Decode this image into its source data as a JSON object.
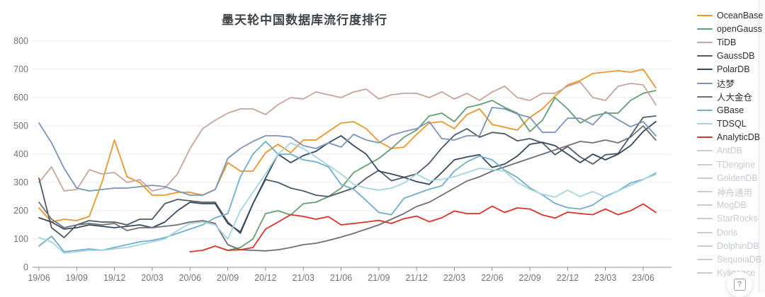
{
  "header": {
    "title": "墨天轮中国数据库流行度排行"
  },
  "help_button": {
    "glyph": "?"
  },
  "colors": {
    "grid": "#e4ecf4",
    "axis_line": "#8d9197",
    "tick_text": "#6f7378",
    "disabled_legend": "#c9cdd2"
  },
  "legend": {
    "position": "right",
    "items": [
      {
        "label": "OceanBase",
        "color": "#e8982c",
        "enabled": true
      },
      {
        "label": "openGauss",
        "color": "#659d72",
        "enabled": true
      },
      {
        "label": "TiDB",
        "color": "#c7a59c",
        "enabled": true
      },
      {
        "label": "GaussDB",
        "color": "#515a64",
        "enabled": true
      },
      {
        "label": "PolarDB",
        "color": "#37485c",
        "enabled": true
      },
      {
        "label": "达梦",
        "color": "#7a95b8",
        "enabled": true
      },
      {
        "label": "人大金仓",
        "color": "#6d6f74",
        "enabled": true
      },
      {
        "label": "GBase",
        "color": "#72aecb",
        "enabled": true
      },
      {
        "label": "TDSQL",
        "color": "#a6d4dd",
        "enabled": true
      },
      {
        "label": "AnalyticDB",
        "color": "#d6332a",
        "enabled": true
      },
      {
        "label": "AntDB",
        "color": "#c9cdd2",
        "enabled": false
      },
      {
        "label": "TDengine",
        "color": "#c9cdd2",
        "enabled": false
      },
      {
        "label": "GoldenDB",
        "color": "#c9cdd2",
        "enabled": false
      },
      {
        "label": "神舟通用",
        "color": "#c9cdd2",
        "enabled": false
      },
      {
        "label": "MogDB",
        "color": "#c9cdd2",
        "enabled": false
      },
      {
        "label": "StarRocks",
        "color": "#c9cdd2",
        "enabled": false
      },
      {
        "label": "Doris",
        "color": "#c9cdd2",
        "enabled": false
      },
      {
        "label": "DolphinDB",
        "color": "#c9cdd2",
        "enabled": false
      },
      {
        "label": "SequoiaDB",
        "color": "#c9cdd2",
        "enabled": false
      },
      {
        "label": "Kyligence",
        "color": "#c9cdd2",
        "enabled": false
      }
    ]
  },
  "chart_data": {
    "type": "line",
    "title": "墨天轮中国数据库流行度排行",
    "xlabel": "",
    "ylabel": "",
    "ylim": [
      0,
      800
    ],
    "ytick_step": 100,
    "grid": true,
    "legend_position": "right",
    "x": [
      "19/06",
      "19/07",
      "19/08",
      "19/09",
      "19/10",
      "19/11",
      "19/12",
      "20/01",
      "20/02",
      "20/03",
      "20/04",
      "20/05",
      "20/06",
      "20/07",
      "20/08",
      "20/09",
      "20/10",
      "20/11",
      "20/12",
      "21/01",
      "21/02",
      "21/03",
      "21/04",
      "21/05",
      "21/06",
      "21/07",
      "21/08",
      "21/09",
      "21/10",
      "21/11",
      "21/12",
      "22/01",
      "22/02",
      "22/03",
      "22/04",
      "22/05",
      "22/06",
      "22/07",
      "22/08",
      "22/09",
      "22/10",
      "22/11",
      "22/12",
      "23/01",
      "23/02",
      "23/03",
      "23/04",
      "23/05",
      "23/06",
      "23/07"
    ],
    "xtick_every": 3,
    "series": [
      {
        "name": "OceanBase",
        "color": "#e8982c",
        "enabled": true,
        "values": [
          210,
          160,
          170,
          165,
          180,
          300,
          450,
          320,
          300,
          255,
          255,
          265,
          265,
          255,
          275,
          370,
          340,
          340,
          405,
          435,
          405,
          450,
          450,
          480,
          510,
          515,
          490,
          445,
          420,
          425,
          470,
          510,
          515,
          490,
          540,
          560,
          505,
          495,
          485,
          530,
          560,
          605,
          645,
          660,
          685,
          690,
          695,
          690,
          700,
          635
        ]
      },
      {
        "name": "openGauss",
        "color": "#659d72",
        "enabled": true,
        "values": [
          null,
          null,
          null,
          null,
          null,
          null,
          null,
          null,
          null,
          null,
          null,
          null,
          null,
          null,
          null,
          60,
          70,
          100,
          190,
          200,
          185,
          225,
          230,
          250,
          280,
          335,
          360,
          385,
          420,
          460,
          485,
          535,
          545,
          515,
          565,
          575,
          590,
          565,
          545,
          480,
          520,
          600,
          560,
          510,
          535,
          545,
          545,
          590,
          615,
          625
        ]
      },
      {
        "name": "TiDB",
        "color": "#c7a59c",
        "enabled": true,
        "values": [
          300,
          355,
          270,
          275,
          345,
          330,
          335,
          300,
          310,
          270,
          280,
          330,
          420,
          490,
          520,
          545,
          560,
          560,
          540,
          575,
          600,
          595,
          620,
          610,
          600,
          620,
          630,
          595,
          610,
          615,
          615,
          600,
          620,
          595,
          615,
          590,
          620,
          640,
          600,
          590,
          615,
          615,
          640,
          655,
          600,
          590,
          640,
          650,
          645,
          575
        ]
      },
      {
        "name": "GaussDB",
        "color": "#515a64",
        "enabled": true,
        "values": [
          315,
          140,
          105,
          150,
          165,
          160,
          160,
          150,
          170,
          170,
          225,
          240,
          235,
          230,
          230,
          160,
          120,
          225,
          310,
          300,
          280,
          270,
          255,
          250,
          265,
          280,
          315,
          343,
          306,
          318,
          330,
          368,
          422,
          467,
          490,
          460,
          477,
          472,
          447,
          455,
          440,
          398,
          427,
          390,
          365,
          398,
          402,
          465,
          530,
          535
        ]
      },
      {
        "name": "PolarDB",
        "color": "#37485c",
        "enabled": true,
        "values": [
          175,
          160,
          135,
          140,
          150,
          145,
          140,
          145,
          150,
          140,
          160,
          200,
          230,
          225,
          225,
          155,
          125,
          225,
          315,
          400,
          370,
          395,
          410,
          440,
          465,
          430,
          400,
          340,
          330,
          318,
          303,
          293,
          335,
          380,
          390,
          398,
          353,
          365,
          393,
          435,
          442,
          430,
          400,
          370,
          400,
          380,
          400,
          430,
          480,
          515
        ]
      },
      {
        "name": "达梦",
        "color": "#7a95b8",
        "enabled": true,
        "values": [
          510,
          440,
          350,
          280,
          270,
          275,
          280,
          280,
          285,
          290,
          285,
          270,
          255,
          255,
          275,
          385,
          420,
          445,
          465,
          465,
          460,
          430,
          420,
          440,
          425,
          470,
          450,
          440,
          467,
          480,
          490,
          515,
          455,
          450,
          465,
          465,
          565,
          560,
          542,
          530,
          477,
          477,
          527,
          527,
          504,
          550,
          522,
          497,
          515,
          465
        ]
      },
      {
        "name": "人大金仓",
        "color": "#6d6f74",
        "enabled": true,
        "values": [
          230,
          170,
          140,
          150,
          155,
          150,
          155,
          130,
          140,
          140,
          145,
          150,
          160,
          165,
          155,
          80,
          62,
          60,
          58,
          62,
          70,
          80,
          85,
          95,
          107,
          120,
          135,
          150,
          170,
          190,
          215,
          230,
          255,
          280,
          305,
          320,
          340,
          355,
          370,
          385,
          400,
          415,
          430,
          445,
          440,
          450,
          440,
          460,
          500,
          450
        ]
      },
      {
        "name": "GBase",
        "color": "#72aecb",
        "enabled": true,
        "values": [
          75,
          110,
          55,
          60,
          65,
          60,
          70,
          80,
          90,
          95,
          105,
          120,
          135,
          150,
          175,
          190,
          320,
          400,
          445,
          400,
          400,
          380,
          373,
          355,
          293,
          276,
          236,
          194,
          186,
          244,
          260,
          276,
          288,
          340,
          373,
          393,
          380,
          343,
          318,
          281,
          256,
          226,
          211,
          206,
          220,
          251,
          270,
          298,
          311,
          330
        ]
      },
      {
        "name": "TDSQL",
        "color": "#a6d4dd",
        "enabled": true,
        "values": [
          105,
          90,
          50,
          55,
          60,
          60,
          65,
          70,
          80,
          90,
          100,
          130,
          155,
          160,
          150,
          100,
          200,
          265,
          330,
          400,
          440,
          420,
          390,
          360,
          330,
          293,
          280,
          273,
          280,
          298,
          330,
          306,
          311,
          320,
          335,
          350,
          345,
          340,
          300,
          276,
          258,
          248,
          273,
          250,
          268,
          248,
          270,
          290,
          310,
          335
        ]
      },
      {
        "name": "AnalyticDB",
        "color": "#d6332a",
        "enabled": true,
        "values": [
          null,
          null,
          null,
          null,
          null,
          null,
          null,
          null,
          null,
          null,
          null,
          null,
          55,
          60,
          75,
          60,
          62,
          70,
          135,
          160,
          186,
          180,
          170,
          179,
          150,
          155,
          160,
          166,
          155,
          172,
          181,
          161,
          175,
          199,
          190,
          190,
          216,
          194,
          210,
          206,
          185,
          174,
          195,
          190,
          186,
          206,
          186,
          200,
          224,
          194
        ]
      },
      {
        "name": "AntDB",
        "color": "#c9cdd2",
        "enabled": false,
        "values": []
      },
      {
        "name": "TDengine",
        "color": "#c9cdd2",
        "enabled": false,
        "values": []
      },
      {
        "name": "GoldenDB",
        "color": "#c9cdd2",
        "enabled": false,
        "values": []
      },
      {
        "name": "神舟通用",
        "color": "#c9cdd2",
        "enabled": false,
        "values": []
      },
      {
        "name": "MogDB",
        "color": "#c9cdd2",
        "enabled": false,
        "values": []
      },
      {
        "name": "StarRocks",
        "color": "#c9cdd2",
        "enabled": false,
        "values": []
      },
      {
        "name": "Doris",
        "color": "#c9cdd2",
        "enabled": false,
        "values": []
      },
      {
        "name": "DolphinDB",
        "color": "#c9cdd2",
        "enabled": false,
        "values": []
      },
      {
        "name": "SequoiaDB",
        "color": "#c9cdd2",
        "enabled": false,
        "values": []
      },
      {
        "name": "Kyligence",
        "color": "#c9cdd2",
        "enabled": false,
        "values": []
      }
    ]
  }
}
